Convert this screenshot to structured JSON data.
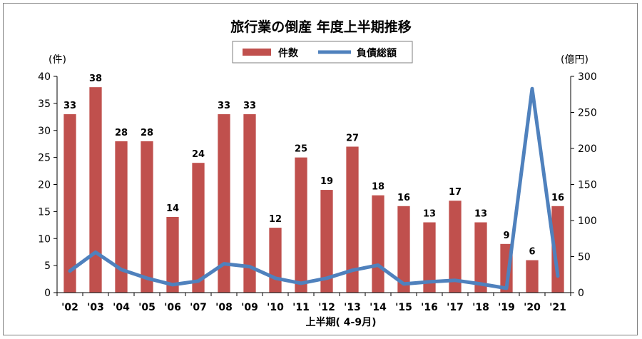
{
  "chart_data": {
    "type": "bar",
    "title": "旅行業の倒産 年度上半期推移",
    "xlabel": "上半期( 4-9月)",
    "ylabel_left": "(件)",
    "ylabel_right": "(億円)",
    "y_left_range": [
      0,
      40
    ],
    "y_left_ticks": [
      "0",
      "5",
      "10",
      "15",
      "20",
      "25",
      "30",
      "35",
      "40"
    ],
    "y_right_range": [
      0,
      300
    ],
    "y_right_ticks": [
      "0",
      "50",
      "100",
      "150",
      "200",
      "250",
      "300"
    ],
    "categories": [
      "'02",
      "'03",
      "'04",
      "'05",
      "'06",
      "'07",
      "'08",
      "'09",
      "'10",
      "'11",
      "'12",
      "'13",
      "'14",
      "'15",
      "'16",
      "'17",
      "'18",
      "'19",
      "'20",
      "'21"
    ],
    "series": [
      {
        "name": "件数",
        "type": "bar",
        "axis": "left",
        "color": "#c0504d",
        "values": [
          33,
          38,
          28,
          28,
          14,
          24,
          33,
          33,
          12,
          25,
          19,
          27,
          18,
          16,
          13,
          17,
          13,
          9,
          6,
          16
        ],
        "labels": [
          "33",
          "38",
          "28",
          "28",
          "14",
          "24",
          "33",
          "33",
          "12",
          "25",
          "19",
          "27",
          "18",
          "16",
          "13",
          "17",
          "13",
          "9",
          "6",
          "16"
        ]
      },
      {
        "name": "負債総額",
        "type": "line",
        "axis": "right",
        "color": "#4f81bd",
        "values": [
          30,
          56,
          32,
          20,
          11,
          16,
          40,
          36,
          20,
          13,
          20,
          31,
          38,
          12,
          15,
          17,
          12,
          6,
          283,
          23
        ]
      }
    ],
    "legend": "top-center",
    "grid": false
  }
}
